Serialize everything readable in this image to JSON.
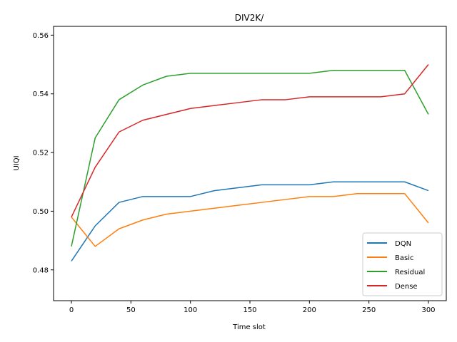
{
  "chart_data": {
    "type": "line",
    "title": "DIV2K/",
    "xlabel": "Time slot",
    "ylabel": "UIQI",
    "xlim": [
      -15,
      315
    ],
    "ylim": [
      0.4695,
      0.563
    ],
    "xticks": [
      0,
      50,
      100,
      150,
      200,
      250,
      300
    ],
    "yticks": [
      0.48,
      0.5,
      0.52,
      0.54,
      0.56
    ],
    "ytick_labels": [
      "0.48",
      "0.50",
      "0.52",
      "0.54",
      "0.56"
    ],
    "grid": false,
    "legend_position": "lower-right",
    "series": [
      {
        "name": "DQN",
        "color": "#1f77b4",
        "x": [
          0,
          20,
          40,
          60,
          80,
          100,
          120,
          140,
          160,
          180,
          200,
          220,
          240,
          260,
          280,
          300
        ],
        "y": [
          0.483,
          0.495,
          0.503,
          0.505,
          0.505,
          0.505,
          0.507,
          0.508,
          0.509,
          0.509,
          0.509,
          0.51,
          0.51,
          0.51,
          0.51,
          0.507
        ]
      },
      {
        "name": "Basic",
        "color": "#ff7f0e",
        "x": [
          0,
          20,
          40,
          60,
          80,
          100,
          120,
          140,
          160,
          180,
          200,
          220,
          240,
          260,
          280,
          300
        ],
        "y": [
          0.498,
          0.488,
          0.494,
          0.497,
          0.499,
          0.5,
          0.501,
          0.502,
          0.503,
          0.504,
          0.505,
          0.505,
          0.506,
          0.506,
          0.506,
          0.496
        ]
      },
      {
        "name": "Residual",
        "color": "#2ca02c",
        "x": [
          0,
          20,
          40,
          60,
          80,
          100,
          120,
          140,
          160,
          180,
          200,
          220,
          240,
          260,
          280,
          300
        ],
        "y": [
          0.488,
          0.525,
          0.538,
          0.543,
          0.546,
          0.547,
          0.547,
          0.547,
          0.547,
          0.547,
          0.547,
          0.548,
          0.548,
          0.548,
          0.548,
          0.533
        ]
      },
      {
        "name": "Dense",
        "color": "#d62728",
        "x": [
          0,
          20,
          40,
          60,
          80,
          100,
          120,
          140,
          160,
          180,
          200,
          220,
          240,
          260,
          280,
          300
        ],
        "y": [
          0.498,
          0.515,
          0.527,
          0.531,
          0.533,
          0.535,
          0.536,
          0.537,
          0.538,
          0.538,
          0.539,
          0.539,
          0.539,
          0.539,
          0.54,
          0.55
        ]
      }
    ]
  }
}
